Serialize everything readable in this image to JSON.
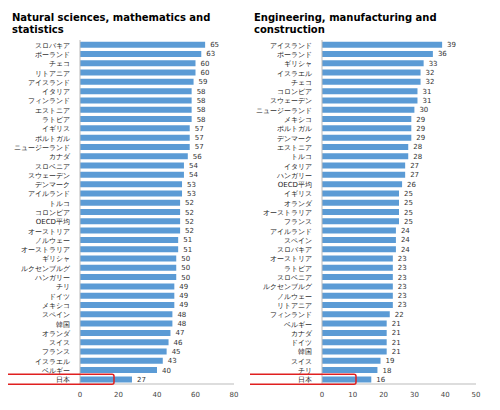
{
  "chart_data": [
    {
      "type": "bar",
      "title": "Natural sciences, mathematics and statistics",
      "orientation": "horizontal",
      "data_labels": true,
      "grid": false,
      "color": "#5b9bd5",
      "categories": [
        "スロバキア",
        "ポーランド",
        "チェコ",
        "リトアニア",
        "アイスランド",
        "イタリア",
        "フィンランド",
        "エストニア",
        "ラトビア",
        "イギリス",
        "ポルトガル",
        "ニュージーランド",
        "カナダ",
        "スロベニア",
        "スウェーデン",
        "デンマーク",
        "アイルランド",
        "トルコ",
        "コロンビア",
        "OECD平均",
        "オーストリア",
        "ノルウェー",
        "オーストラリア",
        "ギリシャ",
        "ルクセンブルグ",
        "ハンガリー",
        "チリ",
        "ドイツ",
        "メキシコ",
        "スペイン",
        "韓国",
        "オランダ",
        "スイス",
        "フランス",
        "イスラエル",
        "ベルギー",
        "日本"
      ],
      "values": [
        65,
        63,
        60,
        60,
        59,
        58,
        58,
        58,
        58,
        57,
        57,
        57,
        56,
        54,
        54,
        53,
        53,
        52,
        52,
        52,
        52,
        51,
        51,
        50,
        50,
        50,
        49,
        49,
        49,
        48,
        48,
        47,
        46,
        45,
        43,
        40,
        27
      ],
      "xlim": [
        0,
        80
      ],
      "xticks": [
        0,
        20,
        40,
        60,
        80
      ]
    },
    {
      "type": "bar",
      "title": "Engineering, manufacturing and construction",
      "orientation": "horizontal",
      "data_labels": true,
      "grid": false,
      "color": "#5b9bd5",
      "categories": [
        "アイスランド",
        "ポーランド",
        "ギリシャ",
        "イスラエル",
        "チェコ",
        "コロンビア",
        "スウェーデン",
        "ニュージーランド",
        "メキシコ",
        "ポルトガル",
        "デンマーク",
        "エストニア",
        "トルコ",
        "イタリア",
        "ハンガリー",
        "OECD平均",
        "イギリス",
        "オランダ",
        "オーストラリア",
        "フランス",
        "アイルランド",
        "スペイン",
        "スロバキア",
        "オーストリア",
        "ラトビア",
        "スロベニア",
        "ルクセンブルグ",
        "ノルウェー",
        "リトアニア",
        "フィンランド",
        "ベルギー",
        "カナダ",
        "ドイツ",
        "韓国",
        "スイス",
        "チリ",
        "日本"
      ],
      "values": [
        39,
        36,
        33,
        32,
        32,
        31,
        31,
        30,
        29,
        29,
        29,
        28,
        28,
        27,
        27,
        26,
        25,
        25,
        25,
        25,
        24,
        24,
        24,
        23,
        23,
        23,
        23,
        23,
        23,
        22,
        21,
        21,
        21,
        21,
        19,
        18,
        16
      ],
      "xlim": [
        0,
        50
      ],
      "xticks": [
        0,
        10,
        20,
        30,
        40,
        50
      ]
    }
  ]
}
